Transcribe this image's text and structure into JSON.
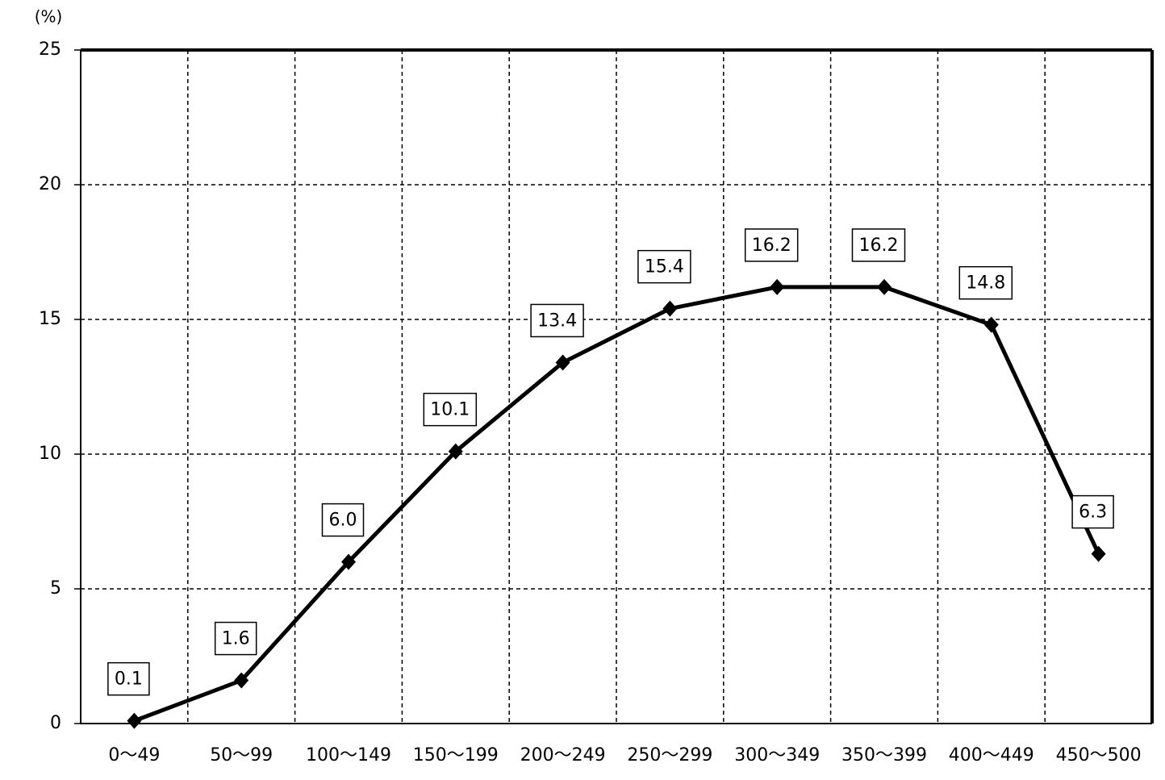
{
  "chart_data": {
    "type": "line",
    "y_label": "(%)",
    "categories": [
      "0〜49",
      "50〜99",
      "100〜149",
      "150〜199",
      "200〜249",
      "250〜299",
      "300〜349",
      "350〜399",
      "400〜449",
      "450〜500"
    ],
    "series": [
      {
        "color": "#000000",
        "values": [
          0.1,
          1.6,
          6.0,
          10.1,
          13.4,
          15.4,
          16.2,
          16.2,
          14.8,
          6.3
        ],
        "value_labels": [
          "0.1",
          "1.6",
          "6.0",
          "10.1",
          "13.4",
          "15.4",
          "16.2",
          "16.2",
          "14.8",
          "6.3"
        ]
      }
    ],
    "ylim": [
      0,
      25
    ],
    "yticks": [
      0,
      5,
      10,
      15,
      20,
      25
    ],
    "grid": true
  }
}
